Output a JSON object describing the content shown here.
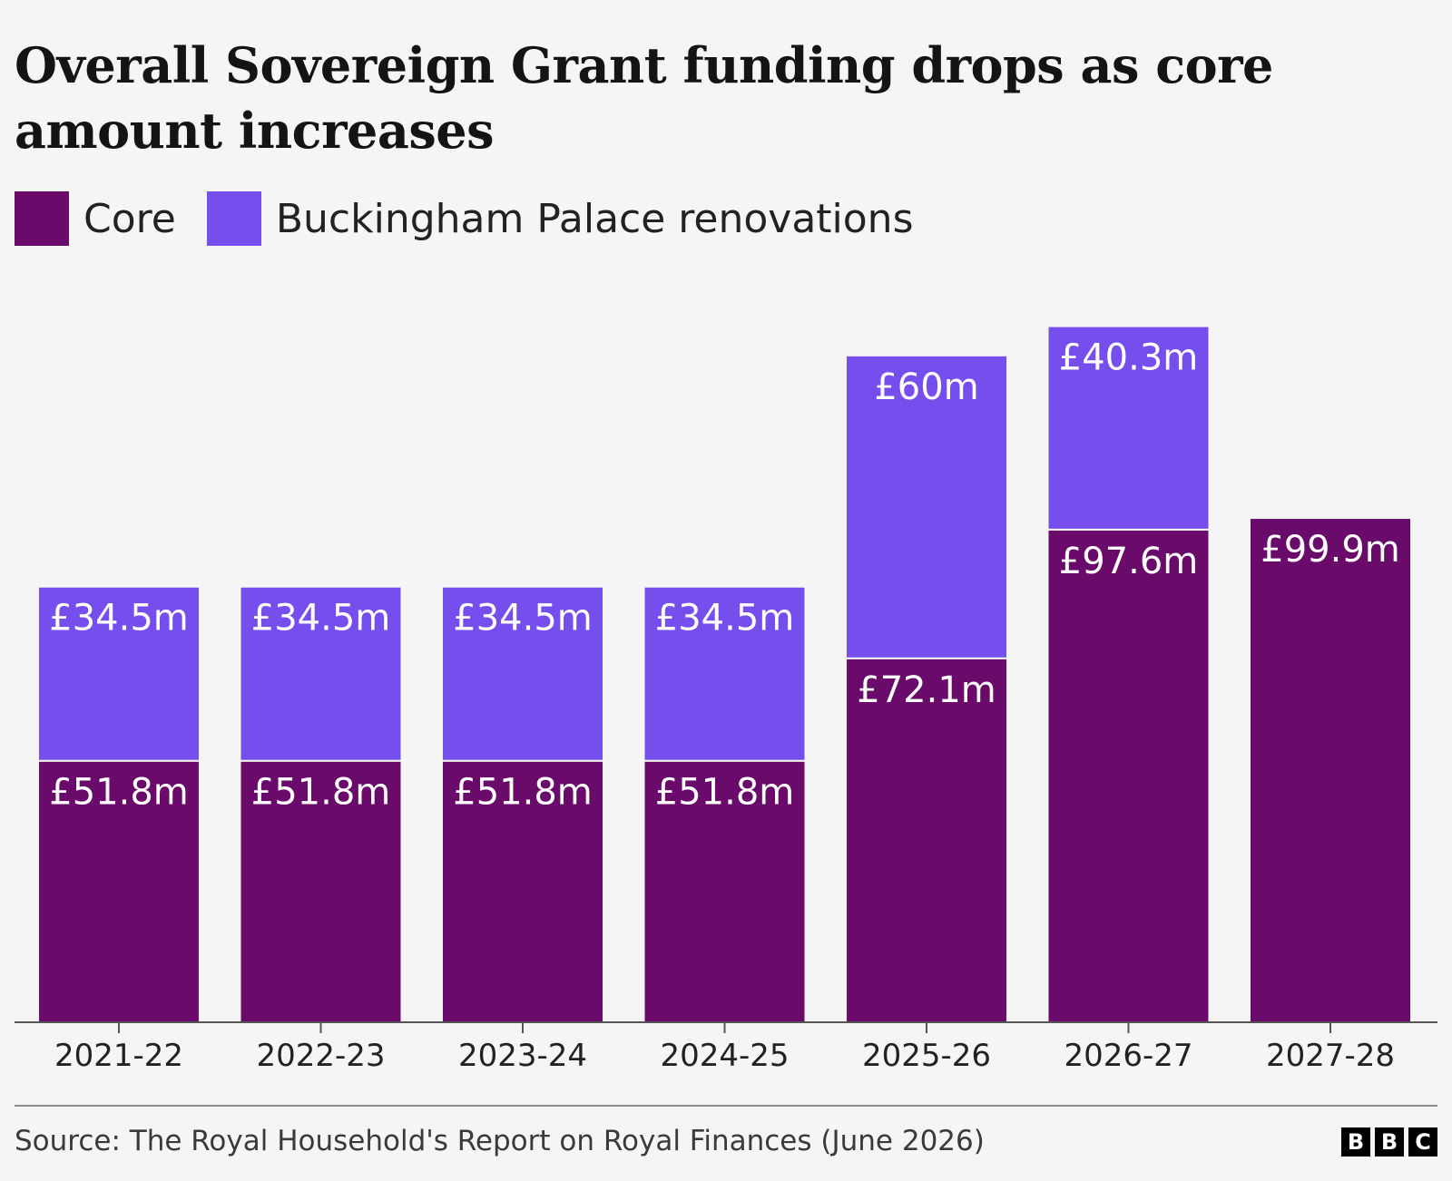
{
  "chart_data": {
    "type": "bar",
    "stacked": true,
    "title": "Overall Sovereign Grant funding drops as core amount increases",
    "categories": [
      "2021-22",
      "2022-23",
      "2023-24",
      "2024-25",
      "2025-26",
      "2026-27",
      "2027-28"
    ],
    "series": [
      {
        "name": "Core",
        "color": "#6a0a6a",
        "values": [
          51.8,
          51.8,
          51.8,
          51.8,
          72.1,
          97.6,
          99.9
        ],
        "labels": [
          "£51.8m",
          "£51.8m",
          "£51.8m",
          "£51.8m",
          "£72.1m",
          "£97.6m",
          "£99.9m"
        ]
      },
      {
        "name": "Buckingham Palace renovations",
        "color": "#764eed",
        "values": [
          34.5,
          34.5,
          34.5,
          34.5,
          60,
          40.3,
          0
        ],
        "labels": [
          "£34.5m",
          "£34.5m",
          "£34.5m",
          "£34.5m",
          "£60m",
          "£40.3m",
          ""
        ]
      }
    ],
    "ylim": [
      0,
      140
    ],
    "grid": false,
    "legend_position": "top-left",
    "xlabel": "",
    "ylabel": ""
  },
  "source": "Source: The Royal Household's Report on Royal Finances (June 2026)",
  "logo": [
    "B",
    "B",
    "C"
  ]
}
